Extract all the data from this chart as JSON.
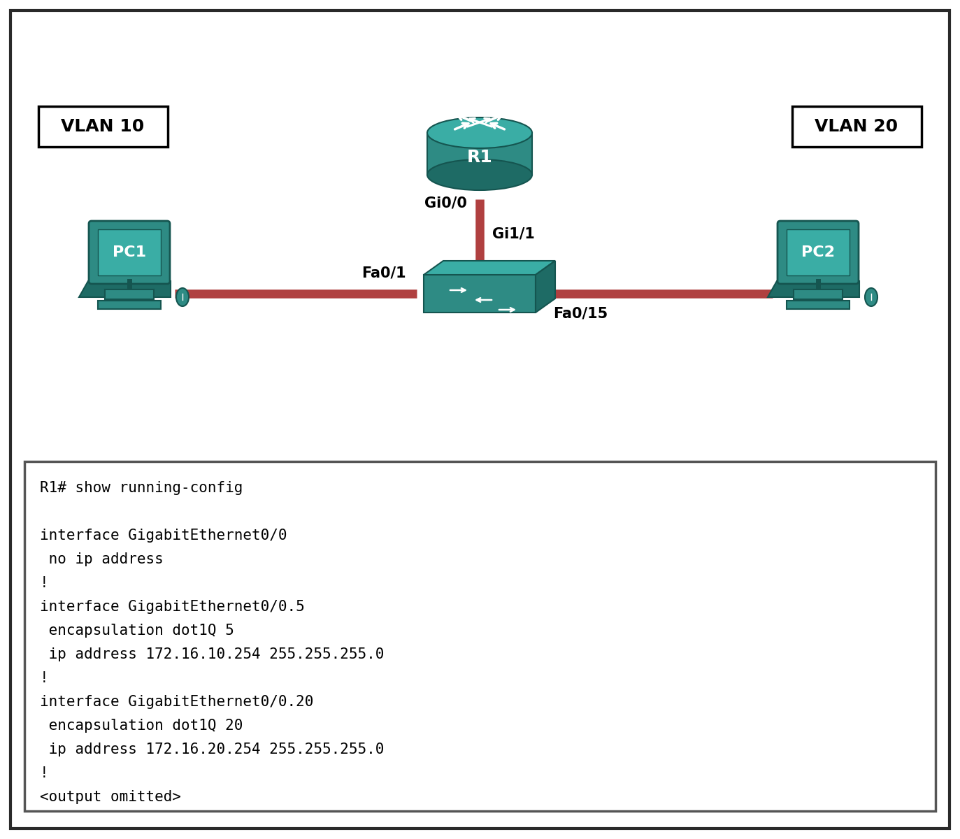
{
  "background_color": "#ffffff",
  "border_color": "#2a2a2a",
  "vlan10_label": "VLAN 10",
  "vlan20_label": "VLAN 20",
  "router_label": "R1",
  "pc1_label": "PC1",
  "pc2_label": "PC2",
  "port_gi00": "Gi0/0",
  "port_gi11": "Gi1/1",
  "port_fa01": "Fa0/1",
  "port_fa015": "Fa0/15",
  "teal_body": "#2e8b84",
  "teal_top": "#3aada5",
  "teal_side": "#1e6b65",
  "teal_dark": "#155550",
  "red_line": "#b04040",
  "text_color": "#000000",
  "config_border": "#555555",
  "config_lines": [
    "R1# show running-config",
    "",
    "interface GigabitEthernet0/0",
    " no ip address",
    "!",
    "interface GigabitEthernet0/0.5",
    " encapsulation dot1Q 5",
    " ip address 172.16.10.254 255.255.255.0",
    "!",
    "interface GigabitEthernet0/0.20",
    " encapsulation dot1Q 20",
    " ip address 172.16.20.254 255.255.255.0",
    "!",
    "<output omitted>"
  ],
  "config_fontsize": 15,
  "port_fontsize": 15,
  "vlan_fontsize": 18,
  "label_fontsize": 16
}
